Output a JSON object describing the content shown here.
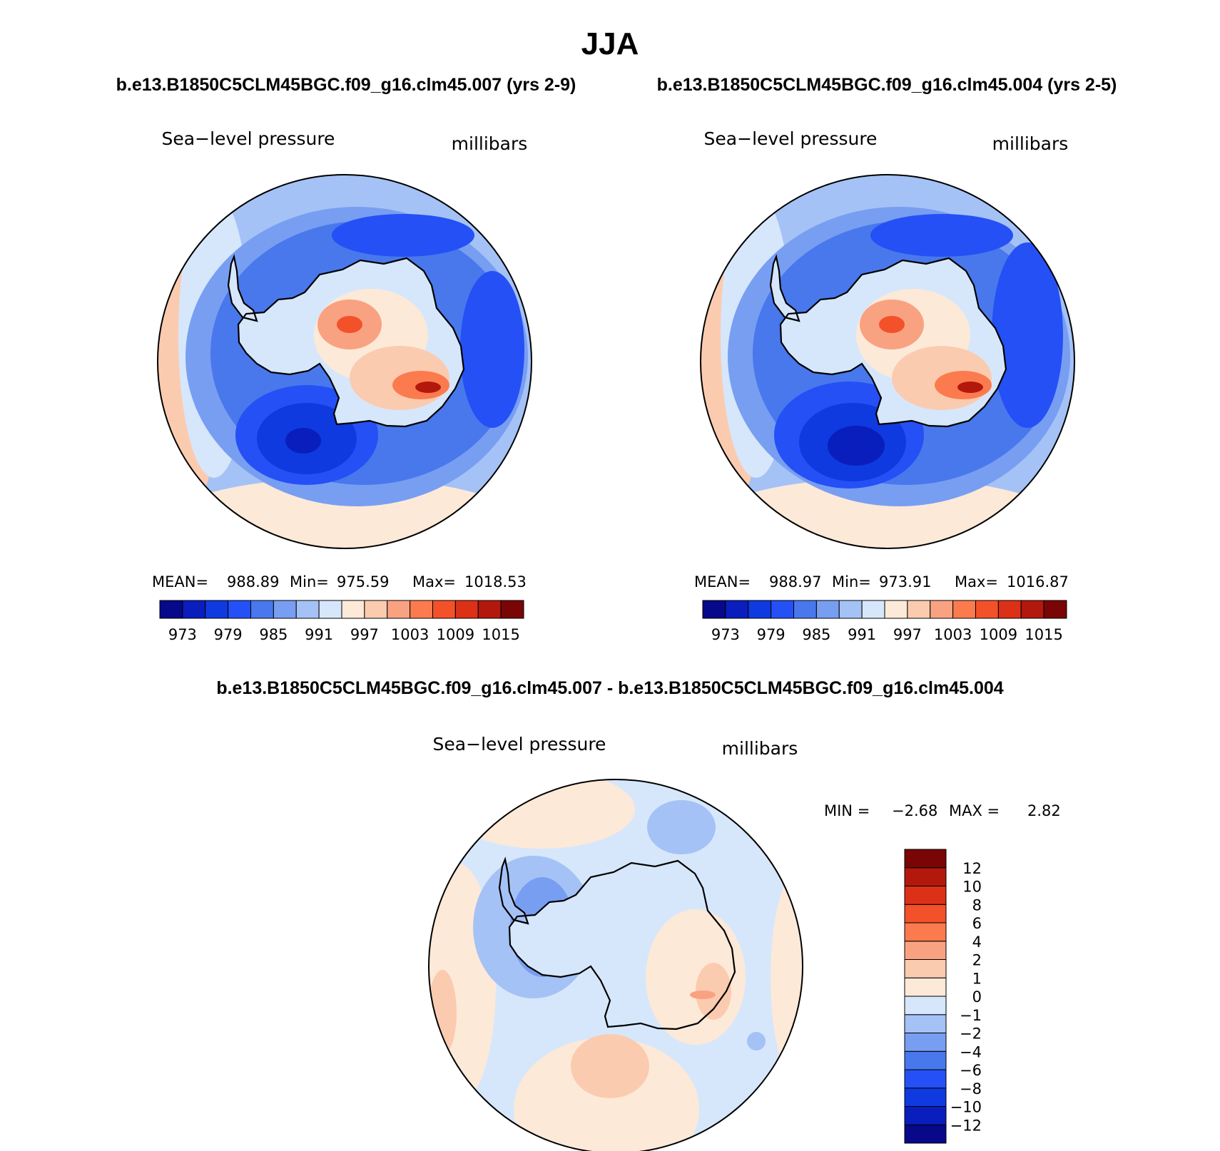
{
  "figure": {
    "season": "JJA",
    "case_a_header": "b.e13.B1850C5CLM45BGC.f09_g16.clm45.007 (yrs 2-9)",
    "case_b_header": "b.e13.B1850C5CLM45BGC.f09_g16.clm45.004 (yrs 2-5)",
    "diff_header": "b.e13.B1850C5CLM45BGC.f09_g16.clm45.007 - b.e13.B1850C5CLM45BGC.f09_g16.clm45.004"
  },
  "chart_data": [
    {
      "type": "heatmap",
      "id": "case_a",
      "projection": "south-polar-stereographic",
      "variable_label": "Sea−level pressure",
      "units_label": "millibars",
      "stats": {
        "mean_label": "MEAN=",
        "mean": "988.89",
        "min_label": "Min=",
        "min": "975.59",
        "max_label": "Max=",
        "max": "1018.53"
      },
      "colorbar": {
        "orientation": "horizontal",
        "levels": [
          973,
          976,
          979,
          982,
          985,
          988,
          991,
          994,
          997,
          1000,
          1003,
          1006,
          1009,
          1012,
          1015
        ],
        "tick_labels": [
          "973",
          "979",
          "985",
          "991",
          "997",
          "1003",
          "1009",
          "1015"
        ],
        "colors": [
          "#08088a",
          "#0a1ebe",
          "#0f3ae0",
          "#2450f5",
          "#4878ec",
          "#789ef2",
          "#a5c2f6",
          "#d6e7fb",
          "#fde9d8",
          "#fbcbb0",
          "#f9a281",
          "#fb7b4e",
          "#f3512a",
          "#dc3116",
          "#b3180d",
          "#7a0505"
        ]
      }
    },
    {
      "type": "heatmap",
      "id": "case_b",
      "projection": "south-polar-stereographic",
      "variable_label": "Sea−level pressure",
      "units_label": "millibars",
      "stats": {
        "mean_label": "MEAN=",
        "mean": "988.97",
        "min_label": "Min=",
        "min": "973.91",
        "max_label": "Max=",
        "max": "1016.87"
      },
      "colorbar": {
        "orientation": "horizontal",
        "levels": [
          973,
          976,
          979,
          982,
          985,
          988,
          991,
          994,
          997,
          1000,
          1003,
          1006,
          1009,
          1012,
          1015
        ],
        "tick_labels": [
          "973",
          "979",
          "985",
          "991",
          "997",
          "1003",
          "1009",
          "1015"
        ],
        "colors": [
          "#08088a",
          "#0a1ebe",
          "#0f3ae0",
          "#2450f5",
          "#4878ec",
          "#789ef2",
          "#a5c2f6",
          "#d6e7fb",
          "#fde9d8",
          "#fbcbb0",
          "#f9a281",
          "#fb7b4e",
          "#f3512a",
          "#dc3116",
          "#b3180d",
          "#7a0505"
        ]
      }
    },
    {
      "type": "heatmap",
      "id": "difference",
      "projection": "south-polar-stereographic",
      "variable_label": "Sea−level pressure",
      "units_label": "millibars",
      "stats": {
        "min_label": "MIN =",
        "min": "−2.68",
        "max_label": "MAX =",
        "max": "2.82"
      },
      "colorbar": {
        "orientation": "vertical",
        "levels": [
          -12,
          -10,
          -8,
          -6,
          -4,
          -2,
          -1,
          0,
          1,
          2,
          4,
          6,
          8,
          10,
          12
        ],
        "tick_labels": [
          "−12",
          "−10",
          "−8",
          "−6",
          "−4",
          "−2",
          "−1",
          "0",
          "1",
          "2",
          "4",
          "6",
          "8",
          "10",
          "12"
        ],
        "colors": [
          "#08088a",
          "#0a1ebe",
          "#0f3ae0",
          "#2450f5",
          "#4878ec",
          "#789ef2",
          "#a5c2f6",
          "#d6e7fb",
          "#fde9d8",
          "#fbcbb0",
          "#f9a281",
          "#fb7b4e",
          "#f3512a",
          "#dc3116",
          "#b3180d",
          "#7a0505"
        ]
      }
    }
  ]
}
